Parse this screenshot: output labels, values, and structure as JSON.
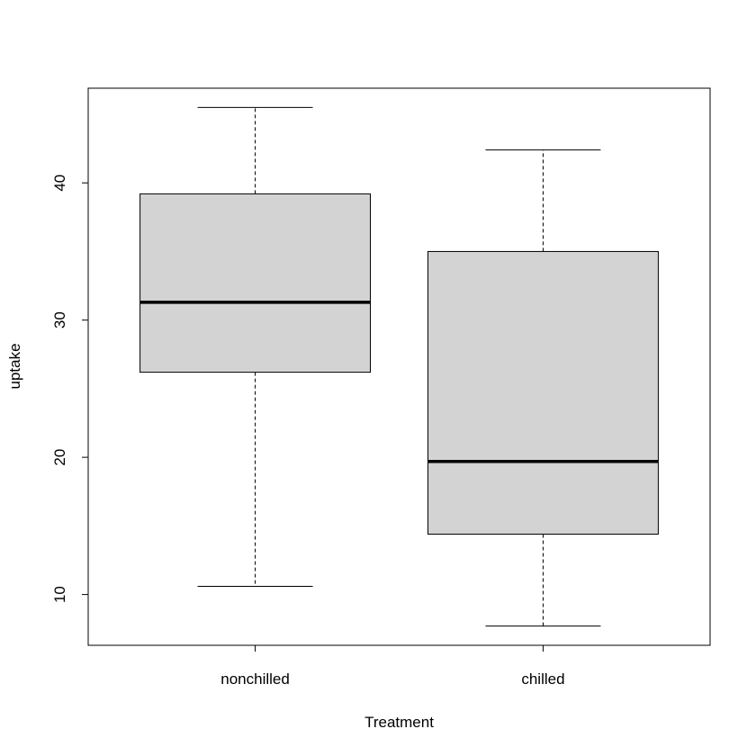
{
  "chart_data": {
    "type": "boxplot",
    "title": "",
    "xlabel": "Treatment",
    "ylabel": "uptake",
    "categories": [
      "nonchilled",
      "chilled"
    ],
    "boxes": [
      {
        "category": "nonchilled",
        "whisker_low": 10.6,
        "q1": 26.2,
        "median": 31.3,
        "q3": 39.2,
        "whisker_high": 45.5
      },
      {
        "category": "chilled",
        "whisker_low": 7.7,
        "q1": 14.4,
        "median": 19.7,
        "q3": 35.0,
        "whisker_high": 42.4
      }
    ],
    "y_ticks": [
      10,
      20,
      30,
      40
    ],
    "ylim": [
      6.3,
      46.9
    ],
    "grid": false,
    "legend": "none",
    "colors": {
      "box_fill": "#d3d3d3",
      "stroke": "#000000",
      "background": "#ffffff"
    }
  }
}
